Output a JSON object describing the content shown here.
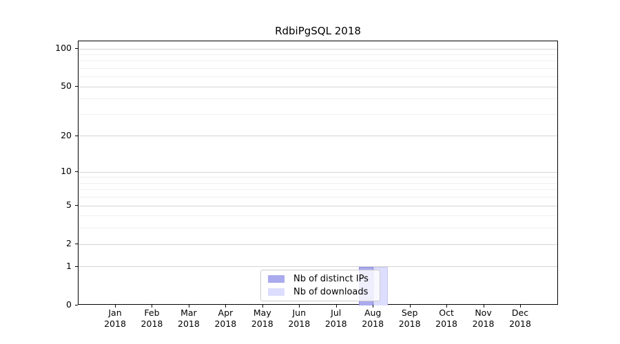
{
  "chart_data": {
    "type": "bar",
    "title": "RdbiPgSQL 2018",
    "categories": [
      "Jan",
      "Feb",
      "Mar",
      "Apr",
      "May",
      "Jun",
      "Jul",
      "Aug",
      "Sep",
      "Oct",
      "Nov",
      "Dec"
    ],
    "x_year": "2018",
    "series": [
      {
        "name": "Nb of distinct IPs",
        "color": "#aaaaee",
        "edge_color": "#8f8fdc",
        "values": [
          0,
          0,
          0,
          0,
          0,
          0,
          0,
          1,
          0,
          0,
          0,
          0
        ]
      },
      {
        "name": "Nb of downloads",
        "color": "#ddddff",
        "edge_color": "#c8c8f0",
        "values": [
          0,
          0,
          0,
          0,
          0,
          0,
          0,
          1,
          0,
          0,
          0,
          0
        ]
      }
    ],
    "y_ticks": [
      0,
      1,
      2,
      5,
      10,
      20,
      50,
      100
    ],
    "y_minor_gridlines": [
      3,
      4,
      6,
      7,
      8,
      9,
      30,
      40,
      60,
      70,
      80,
      90
    ],
    "y_scale": "log1p",
    "ylim": [
      0,
      115
    ],
    "xlabel": "",
    "ylabel": "",
    "grid": "on",
    "legend_position": "bottom-center"
  }
}
